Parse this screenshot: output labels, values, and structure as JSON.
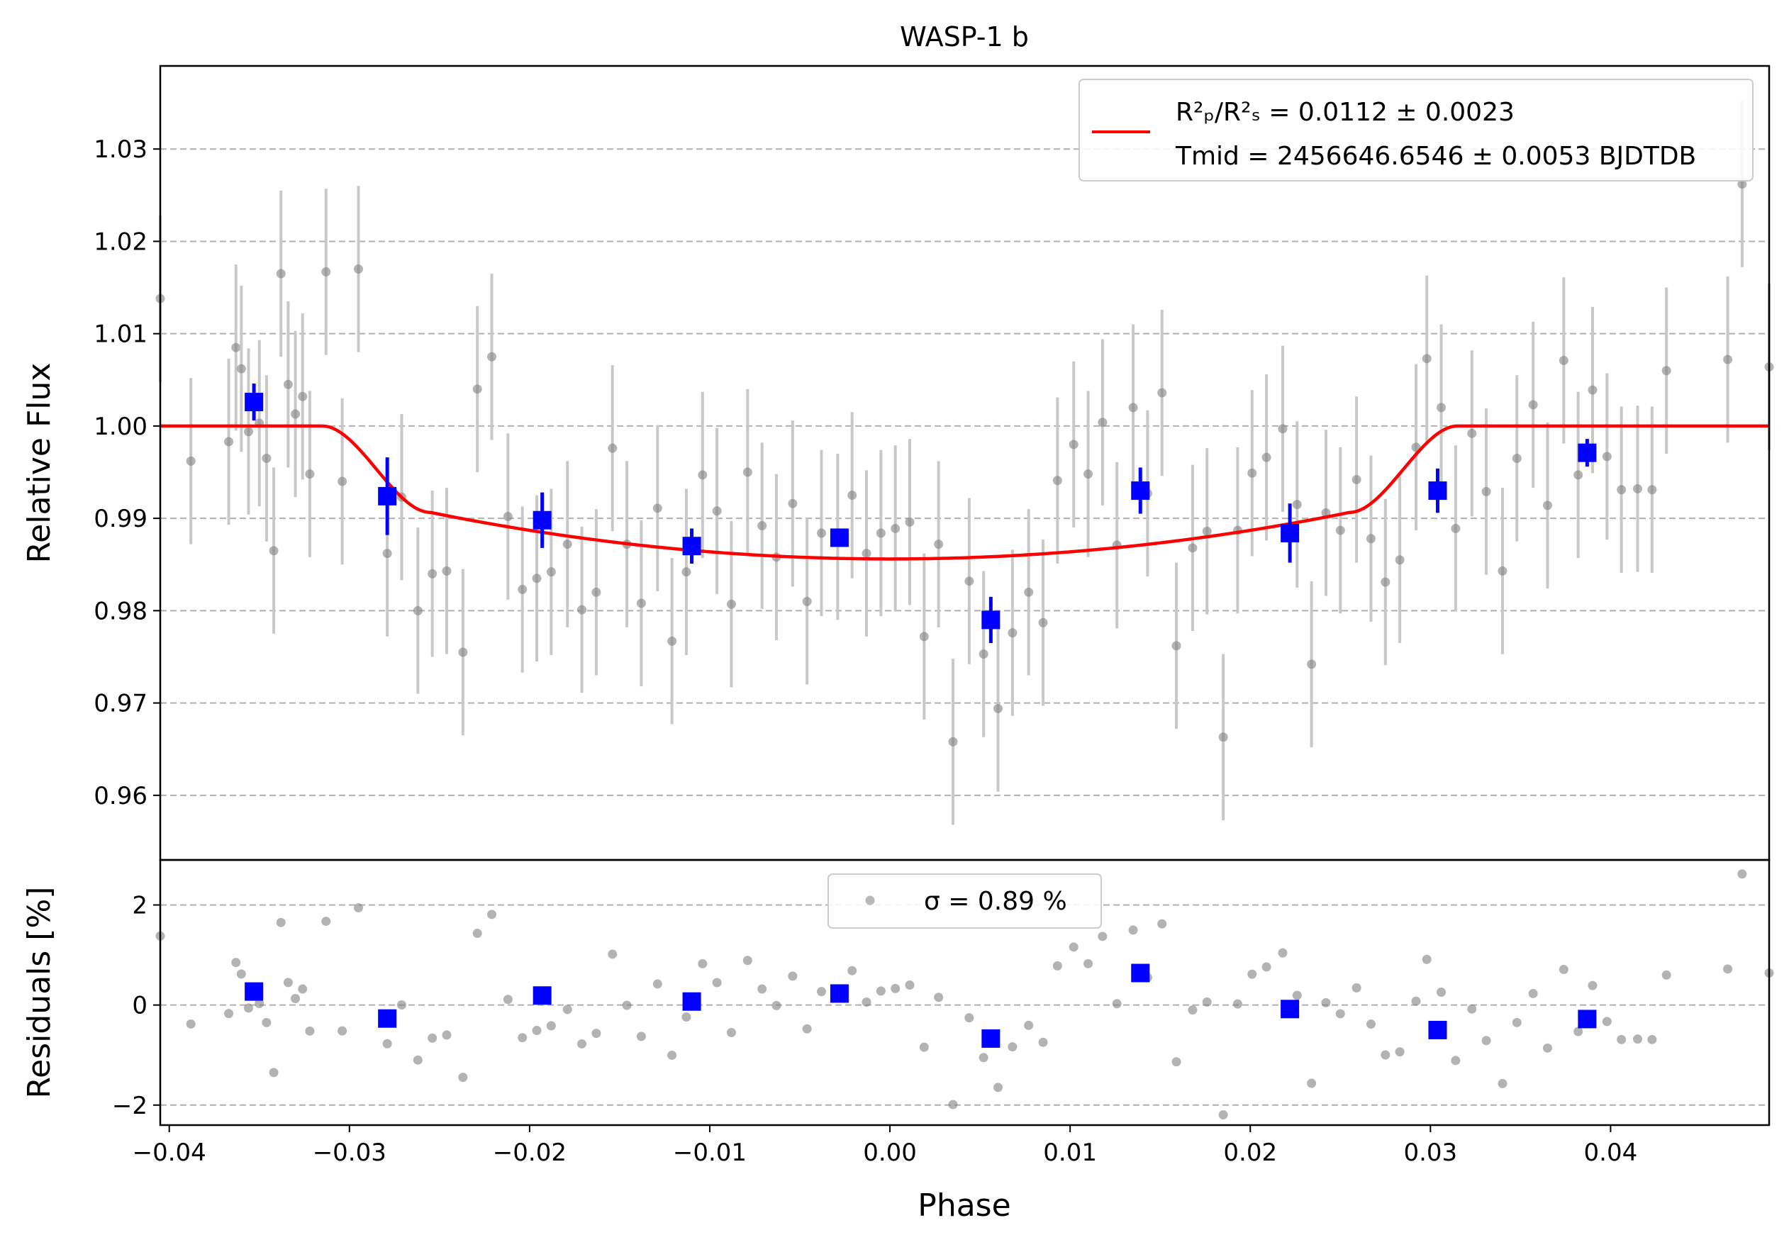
{
  "chart_data": {
    "type": "scatter",
    "title": "WASP-1 b",
    "xlabel": "Phase",
    "top_panel": {
      "ylabel": "Relative Flux",
      "xlim": [
        -0.0405,
        0.0488
      ],
      "ylim": [
        0.953,
        1.039
      ],
      "yticks": [
        0.96,
        0.97,
        0.98,
        0.99,
        1.0,
        1.01,
        1.02,
        1.03
      ],
      "ytick_labels": [
        "0.96",
        "0.97",
        "0.98",
        "0.99",
        "1.00",
        "1.01",
        "1.02",
        "1.03"
      ],
      "grid": "horizontal dashed",
      "legend_placement": "upper right",
      "legend_line1": "R²ₚ/R²ₛ = 0.0112 ± 0.0023",
      "legend_line2": "Tmid = 2456646.6546 ± 0.0053 BJDTDB",
      "model_color": "#ff0000",
      "model_params": {
        "depth": 0.0144,
        "t1": -0.0315,
        "t2": -0.0255,
        "t3": 0.0255,
        "t4": 0.0315
      }
    },
    "bottom_panel": {
      "ylabel": "Residuals [%]",
      "ylim": [
        -2.4,
        2.9
      ],
      "yticks": [
        -2,
        0,
        2
      ],
      "ytick_labels": [
        "−2",
        "0",
        "2"
      ],
      "legend_placement": "upper center",
      "legend_text": "σ = 0.89 %"
    },
    "xticks": [
      -0.04,
      -0.03,
      -0.02,
      -0.01,
      0.0,
      0.01,
      0.02,
      0.03,
      0.04
    ],
    "xtick_labels": [
      "−0.04",
      "−0.03",
      "−0.02",
      "−0.01",
      "0.00",
      "0.01",
      "0.02",
      "0.03",
      "0.04"
    ],
    "colors": {
      "raw": "#808080",
      "errorbar": "#c8c8c8",
      "binned": "#0000ff",
      "model": "#ff0000"
    },
    "raw_points": [
      {
        "x": -0.0405,
        "y": 1.0138,
        "e": 0.009
      },
      {
        "x": -0.0388,
        "y": 0.9962,
        "e": 0.009
      },
      {
        "x": -0.0367,
        "y": 0.9983,
        "e": 0.009
      },
      {
        "x": -0.0363,
        "y": 1.0085,
        "e": 0.009
      },
      {
        "x": -0.036,
        "y": 1.0062,
        "e": 0.009
      },
      {
        "x": -0.0356,
        "y": 0.9994,
        "e": 0.009
      },
      {
        "x": -0.035,
        "y": 1.0003,
        "e": 0.009
      },
      {
        "x": -0.0346,
        "y": 0.9965,
        "e": 0.009
      },
      {
        "x": -0.0342,
        "y": 0.9865,
        "e": 0.009
      },
      {
        "x": -0.0338,
        "y": 1.0165,
        "e": 0.009
      },
      {
        "x": -0.0334,
        "y": 1.0045,
        "e": 0.009
      },
      {
        "x": -0.033,
        "y": 1.0013,
        "e": 0.009
      },
      {
        "x": -0.0326,
        "y": 1.0032,
        "e": 0.009
      },
      {
        "x": -0.0322,
        "y": 0.9948,
        "e": 0.009
      },
      {
        "x": -0.0313,
        "y": 1.0167,
        "e": 0.009
      },
      {
        "x": -0.0304,
        "y": 0.994,
        "e": 0.009
      },
      {
        "x": -0.0295,
        "y": 1.017,
        "e": 0.009
      },
      {
        "x": -0.0279,
        "y": 0.9862,
        "e": 0.009
      },
      {
        "x": -0.0271,
        "y": 0.9923,
        "e": 0.009
      },
      {
        "x": -0.0262,
        "y": 0.98,
        "e": 0.009
      },
      {
        "x": -0.0254,
        "y": 0.984,
        "e": 0.009
      },
      {
        "x": -0.0246,
        "y": 0.9843,
        "e": 0.009
      },
      {
        "x": -0.0237,
        "y": 0.9755,
        "e": 0.009
      },
      {
        "x": -0.0229,
        "y": 1.004,
        "e": 0.009
      },
      {
        "x": -0.0221,
        "y": 1.0075,
        "e": 0.009
      },
      {
        "x": -0.0212,
        "y": 0.9902,
        "e": 0.009
      },
      {
        "x": -0.0204,
        "y": 0.9823,
        "e": 0.009
      },
      {
        "x": -0.0196,
        "y": 0.9835,
        "e": 0.009
      },
      {
        "x": -0.0188,
        "y": 0.9842,
        "e": 0.009
      },
      {
        "x": -0.0179,
        "y": 0.9872,
        "e": 0.009
      },
      {
        "x": -0.0171,
        "y": 0.9801,
        "e": 0.009
      },
      {
        "x": -0.0163,
        "y": 0.982,
        "e": 0.009
      },
      {
        "x": -0.0154,
        "y": 0.9976,
        "e": 0.009
      },
      {
        "x": -0.0146,
        "y": 0.9872,
        "e": 0.009
      },
      {
        "x": -0.0138,
        "y": 0.9808,
        "e": 0.009
      },
      {
        "x": -0.0129,
        "y": 0.9911,
        "e": 0.009
      },
      {
        "x": -0.0121,
        "y": 0.9767,
        "e": 0.009
      },
      {
        "x": -0.0113,
        "y": 0.9842,
        "e": 0.009
      },
      {
        "x": -0.0104,
        "y": 0.9947,
        "e": 0.009
      },
      {
        "x": -0.0096,
        "y": 0.9908,
        "e": 0.009
      },
      {
        "x": -0.0088,
        "y": 0.9807,
        "e": 0.009
      },
      {
        "x": -0.0079,
        "y": 0.995,
        "e": 0.009
      },
      {
        "x": -0.0071,
        "y": 0.9892,
        "e": 0.009
      },
      {
        "x": -0.0063,
        "y": 0.9858,
        "e": 0.009
      },
      {
        "x": -0.0054,
        "y": 0.9916,
        "e": 0.009
      },
      {
        "x": -0.0046,
        "y": 0.981,
        "e": 0.009
      },
      {
        "x": -0.0038,
        "y": 0.9884,
        "e": 0.009
      },
      {
        "x": -0.0029,
        "y": 0.988,
        "e": 0.009
      },
      {
        "x": -0.0021,
        "y": 0.9925,
        "e": 0.009
      },
      {
        "x": -0.0013,
        "y": 0.9862,
        "e": 0.009
      },
      {
        "x": -0.0005,
        "y": 0.9884,
        "e": 0.009
      },
      {
        "x": 0.0003,
        "y": 0.9889,
        "e": 0.009
      },
      {
        "x": 0.0011,
        "y": 0.9896,
        "e": 0.009
      },
      {
        "x": 0.0019,
        "y": 0.9772,
        "e": 0.009
      },
      {
        "x": 0.0027,
        "y": 0.9872,
        "e": 0.009
      },
      {
        "x": 0.0035,
        "y": 0.9658,
        "e": 0.009
      },
      {
        "x": 0.0044,
        "y": 0.9832,
        "e": 0.009
      },
      {
        "x": 0.0052,
        "y": 0.9753,
        "e": 0.009
      },
      {
        "x": 0.006,
        "y": 0.9694,
        "e": 0.009
      },
      {
        "x": 0.0068,
        "y": 0.9776,
        "e": 0.009
      },
      {
        "x": 0.0077,
        "y": 0.982,
        "e": 0.009
      },
      {
        "x": 0.0085,
        "y": 0.9787,
        "e": 0.009
      },
      {
        "x": 0.0093,
        "y": 0.9941,
        "e": 0.009
      },
      {
        "x": 0.0102,
        "y": 0.998,
        "e": 0.009
      },
      {
        "x": 0.011,
        "y": 0.9948,
        "e": 0.009
      },
      {
        "x": 0.0118,
        "y": 1.0004,
        "e": 0.009
      },
      {
        "x": 0.0126,
        "y": 0.9871,
        "e": 0.009
      },
      {
        "x": 0.0135,
        "y": 1.002,
        "e": 0.009
      },
      {
        "x": 0.0143,
        "y": 0.9927,
        "e": 0.009
      },
      {
        "x": 0.0151,
        "y": 1.0036,
        "e": 0.009
      },
      {
        "x": 0.0159,
        "y": 0.9762,
        "e": 0.009
      },
      {
        "x": 0.0168,
        "y": 0.9868,
        "e": 0.009
      },
      {
        "x": 0.0176,
        "y": 0.9886,
        "e": 0.009
      },
      {
        "x": 0.0185,
        "y": 0.9663,
        "e": 0.009
      },
      {
        "x": 0.0193,
        "y": 0.9887,
        "e": 0.009
      },
      {
        "x": 0.0201,
        "y": 0.9949,
        "e": 0.009
      },
      {
        "x": 0.0209,
        "y": 0.9966,
        "e": 0.009
      },
      {
        "x": 0.0218,
        "y": 0.9997,
        "e": 0.009
      },
      {
        "x": 0.0226,
        "y": 0.9915,
        "e": 0.009
      },
      {
        "x": 0.0234,
        "y": 0.9742,
        "e": 0.009
      },
      {
        "x": 0.0242,
        "y": 0.9906,
        "e": 0.009
      },
      {
        "x": 0.025,
        "y": 0.9887,
        "e": 0.009
      },
      {
        "x": 0.0259,
        "y": 0.9942,
        "e": 0.009
      },
      {
        "x": 0.0267,
        "y": 0.9878,
        "e": 0.009
      },
      {
        "x": 0.0275,
        "y": 0.9831,
        "e": 0.009
      },
      {
        "x": 0.0283,
        "y": 0.9855,
        "e": 0.009
      },
      {
        "x": 0.0292,
        "y": 0.9977,
        "e": 0.009
      },
      {
        "x": 0.0298,
        "y": 1.0073,
        "e": 0.009
      },
      {
        "x": 0.0306,
        "y": 1.002,
        "e": 0.009
      },
      {
        "x": 0.0314,
        "y": 0.9889,
        "e": 0.009
      },
      {
        "x": 0.0323,
        "y": 0.9992,
        "e": 0.009
      },
      {
        "x": 0.0331,
        "y": 0.9929,
        "e": 0.009
      },
      {
        "x": 0.034,
        "y": 0.9843,
        "e": 0.009
      },
      {
        "x": 0.0348,
        "y": 0.9965,
        "e": 0.009
      },
      {
        "x": 0.0357,
        "y": 1.0023,
        "e": 0.009
      },
      {
        "x": 0.0365,
        "y": 0.9914,
        "e": 0.009
      },
      {
        "x": 0.0374,
        "y": 1.0071,
        "e": 0.009
      },
      {
        "x": 0.0382,
        "y": 0.9947,
        "e": 0.009
      },
      {
        "x": 0.039,
        "y": 1.0039,
        "e": 0.009
      },
      {
        "x": 0.0398,
        "y": 0.9967,
        "e": 0.009
      },
      {
        "x": 0.0406,
        "y": 0.9931,
        "e": 0.009
      },
      {
        "x": 0.0415,
        "y": 0.9932,
        "e": 0.009
      },
      {
        "x": 0.0423,
        "y": 0.9931,
        "e": 0.009
      },
      {
        "x": 0.0431,
        "y": 1.006,
        "e": 0.009
      },
      {
        "x": 0.0465,
        "y": 1.0072,
        "e": 0.009
      },
      {
        "x": 0.0473,
        "y": 1.0262,
        "e": 0.009
      },
      {
        "x": 0.0488,
        "y": 1.0064,
        "e": 0.009
      }
    ],
    "binned_points": [
      {
        "x": -0.0353,
        "y": 1.0026,
        "e": 0.002,
        "r": 0.27
      },
      {
        "x": -0.0279,
        "y": 0.9924,
        "e": 0.0042,
        "r": -0.27
      },
      {
        "x": -0.0193,
        "y": 0.9898,
        "e": 0.003,
        "r": 0.19
      },
      {
        "x": -0.011,
        "y": 0.987,
        "e": 0.0019,
        "r": 0.07
      },
      {
        "x": -0.0028,
        "y": 0.9879,
        "e": 0.001,
        "r": 0.23
      },
      {
        "x": 0.0056,
        "y": 0.979,
        "e": 0.0025,
        "r": -0.67
      },
      {
        "x": 0.0139,
        "y": 0.993,
        "e": 0.0025,
        "r": 0.64
      },
      {
        "x": 0.0222,
        "y": 0.9884,
        "e": 0.0032,
        "r": -0.08
      },
      {
        "x": 0.0304,
        "y": 0.993,
        "e": 0.0024,
        "r": -0.5
      },
      {
        "x": 0.0387,
        "y": 0.9971,
        "e": 0.0015,
        "r": -0.28
      }
    ]
  }
}
